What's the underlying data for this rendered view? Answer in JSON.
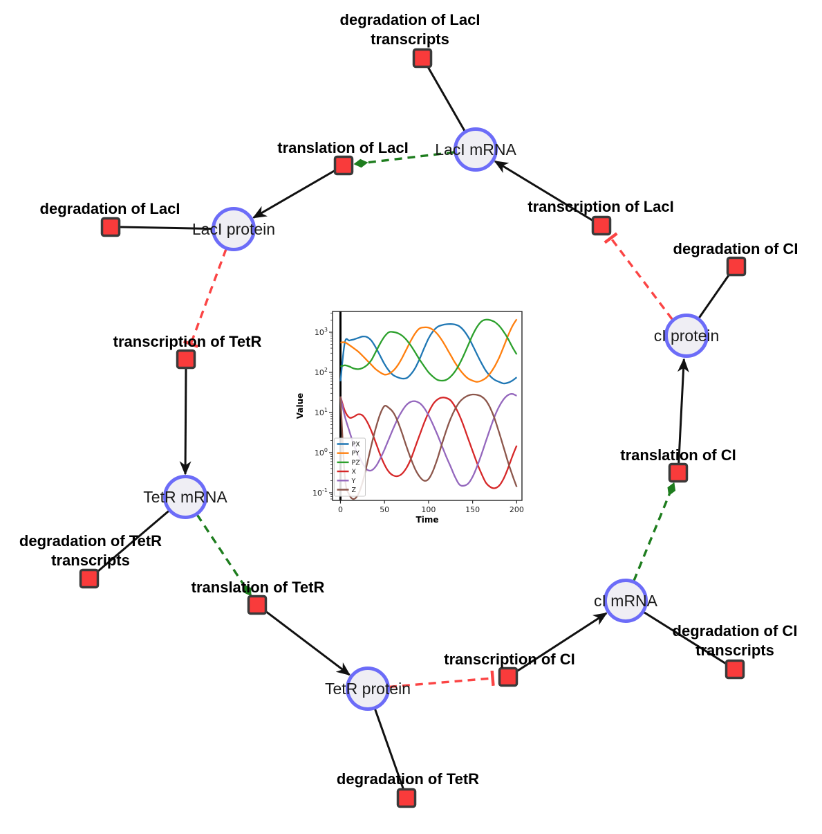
{
  "network": {
    "colors": {
      "species_fill": "#efeef4",
      "species_stroke": "#6c6cf8",
      "reaction_fill": "#f93b3b",
      "reaction_stroke": "#3a3a3a",
      "edge_black": "#111111",
      "edge_modifier_green": "#1e7d1e",
      "edge_inhibition_red": "#fb4444"
    },
    "species": [
      {
        "label": "LacI mRNA"
      },
      {
        "label": "LacI protein"
      },
      {
        "label": "cI protein"
      },
      {
        "label": "TetR mRNA"
      },
      {
        "label": "cI mRNA"
      },
      {
        "label": "TetR protein"
      }
    ],
    "reactions": [
      {
        "line1": "degradation of LacI",
        "line2": "transcripts"
      },
      {
        "line1": "translation of LacI"
      },
      {
        "line1": "degradation of LacI"
      },
      {
        "line1": "transcription of LacI"
      },
      {
        "line1": "degradation of CI"
      },
      {
        "line1": "transcription of TetR"
      },
      {
        "line1": "translation of CI"
      },
      {
        "line1": "degradation of TetR",
        "line2": "transcripts"
      },
      {
        "line1": "translation of TetR"
      },
      {
        "line1": "degradation of CI",
        "line2": "transcripts"
      },
      {
        "line1": "transcription of CI"
      },
      {
        "line1": "degradation of TetR"
      }
    ]
  },
  "chart_data": {
    "type": "line",
    "title": "",
    "xlabel": "Time",
    "ylabel": "Value",
    "yscale": "log",
    "grid": false,
    "legend_position": "lower left",
    "xlim": [
      -9,
      206
    ],
    "ylog_lim": [
      -1.19,
      3.517
    ],
    "x_ticks": [
      0,
      50,
      100,
      150,
      200
    ],
    "y_tick_base": "10",
    "y_tick_exponents": [
      -1,
      0,
      1,
      2,
      3
    ],
    "axvline_x": 0,
    "x": [
      0,
      5,
      10,
      15,
      20,
      25,
      30,
      35,
      40,
      45,
      50,
      55,
      60,
      65,
      70,
      75,
      80,
      85,
      90,
      95,
      100,
      105,
      110,
      115,
      120,
      125,
      130,
      135,
      140,
      145,
      150,
      155,
      160,
      165,
      170,
      175,
      180,
      185,
      190,
      195,
      200
    ],
    "series": [
      {
        "name": "PX",
        "color": "#1f77b4",
        "values": [
          60,
          560,
          620,
          660,
          720,
          780,
          760,
          620,
          420,
          260,
          160,
          110,
          85,
          75,
          70,
          72,
          90,
          130,
          220,
          400,
          700,
          1050,
          1350,
          1500,
          1580,
          1600,
          1550,
          1400,
          1100,
          760,
          470,
          280,
          170,
          110,
          80,
          65,
          58,
          53,
          55,
          62,
          75
        ]
      },
      {
        "name": "PY",
        "color": "#ff7f0e",
        "values": [
          550,
          560,
          480,
          400,
          330,
          260,
          200,
          155,
          120,
          100,
          88,
          92,
          110,
          150,
          230,
          380,
          620,
          950,
          1250,
          1320,
          1300,
          1150,
          900,
          640,
          420,
          270,
          175,
          120,
          88,
          70,
          62,
          58,
          62,
          72,
          95,
          140,
          230,
          420,
          800,
          1400,
          2100
        ]
      },
      {
        "name": "PZ",
        "color": "#2ca02c",
        "values": [
          140,
          150,
          140,
          125,
          120,
          128,
          150,
          200,
          320,
          520,
          780,
          1000,
          1010,
          950,
          820,
          640,
          460,
          310,
          205,
          142,
          100,
          78,
          65,
          62,
          65,
          78,
          105,
          160,
          270,
          480,
          850,
          1350,
          1850,
          2050,
          2000,
          1800,
          1450,
          1050,
          700,
          430,
          280
        ]
      },
      {
        "name": "X",
        "color": "#d62728",
        "values": [
          25,
          11,
          7.5,
          7.8,
          9,
          8.5,
          6,
          3.5,
          1.8,
          0.9,
          0.5,
          0.33,
          0.27,
          0.26,
          0.3,
          0.42,
          0.7,
          1.4,
          2.8,
          5.5,
          10,
          16,
          21,
          23.5,
          23,
          20,
          14,
          8.5,
          4.5,
          2.2,
          1.1,
          0.55,
          0.3,
          0.18,
          0.14,
          0.13,
          0.15,
          0.22,
          0.4,
          0.8,
          1.5
        ]
      },
      {
        "name": "Y",
        "color": "#9467bd",
        "values": [
          25,
          8,
          3.5,
          1.6,
          0.9,
          0.55,
          0.38,
          0.36,
          0.45,
          0.7,
          1.2,
          2.2,
          4,
          7,
          11,
          15.5,
          18.5,
          19,
          17,
          13,
          8.5,
          5,
          2.8,
          1.5,
          0.8,
          0.45,
          0.25,
          0.16,
          0.15,
          0.17,
          0.25,
          0.45,
          0.9,
          1.9,
          4,
          8,
          14,
          21,
          27,
          29,
          26
        ]
      },
      {
        "name": "Z",
        "color": "#8c564b",
        "values": [
          25,
          0.25,
          0.09,
          0.07,
          0.09,
          0.18,
          0.5,
          1.5,
          4,
          9,
          14.5,
          13,
          10,
          6,
          3,
          1.4,
          0.7,
          0.38,
          0.25,
          0.2,
          0.22,
          0.35,
          0.7,
          1.6,
          3.5,
          7,
          12,
          18,
          23,
          26.5,
          28,
          27.5,
          25,
          20,
          13,
          7,
          3.2,
          1.4,
          0.6,
          0.28,
          0.14
        ]
      }
    ]
  }
}
